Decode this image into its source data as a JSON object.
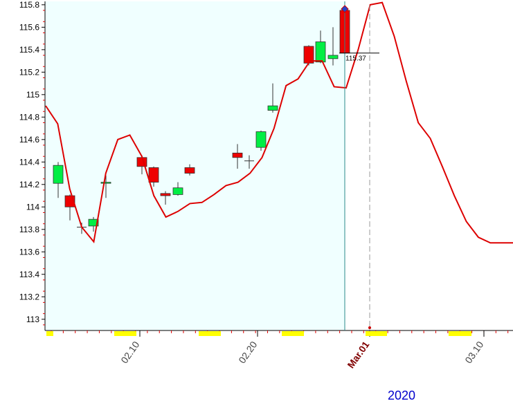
{
  "chart_data": {
    "type": "candlestick",
    "ylim": [
      112.9,
      115.83
    ],
    "y_ticks": [
      "113",
      "113.2",
      "113.4",
      "113.6",
      "113.8",
      "114",
      "114.2",
      "114.4",
      "114.6",
      "114.8",
      "115",
      "115.2",
      "115.4",
      "115.6",
      "115.8"
    ],
    "x_ticks": [
      {
        "label": "02.10",
        "major": false
      },
      {
        "label": "02.20",
        "major": false
      },
      {
        "label": "Mar.01",
        "major": true
      },
      {
        "label": "03.10",
        "major": false
      }
    ],
    "year_label": "2020",
    "last_price_label": "115.37",
    "candles": [
      {
        "open": 114.21,
        "high": 114.4,
        "low": 114.08,
        "close": 114.37
      },
      {
        "open": 114.1,
        "high": 114.11,
        "low": 113.88,
        "close": 114.0
      },
      {
        "open": 113.82,
        "high": 113.86,
        "low": 113.76,
        "close": 113.82
      },
      {
        "open": 113.83,
        "high": 113.91,
        "low": 113.78,
        "close": 113.89
      },
      {
        "open": 114.21,
        "high": 114.28,
        "low": 114.08,
        "close": 114.22
      },
      {
        "open": 114.44,
        "high": 114.46,
        "low": 114.29,
        "close": 114.36
      },
      {
        "open": 114.35,
        "high": 114.36,
        "low": 114.18,
        "close": 114.22
      },
      {
        "open": 114.12,
        "high": 114.14,
        "low": 114.02,
        "close": 114.1
      },
      {
        "open": 114.11,
        "high": 114.22,
        "low": 114.1,
        "close": 114.17
      },
      {
        "open": 114.35,
        "high": 114.38,
        "low": 114.28,
        "close": 114.3
      },
      {
        "open": 114.48,
        "high": 114.56,
        "low": 114.34,
        "close": 114.44
      },
      {
        "open": 114.41,
        "high": 114.46,
        "low": 114.34,
        "close": 114.41
      },
      {
        "open": 114.53,
        "high": 114.68,
        "low": 114.5,
        "close": 114.67
      },
      {
        "open": 114.86,
        "high": 115.1,
        "low": 114.84,
        "close": 114.9
      },
      {
        "open": 115.43,
        "high": 115.44,
        "low": 115.26,
        "close": 115.28
      },
      {
        "open": 115.29,
        "high": 115.57,
        "low": 115.28,
        "close": 115.47
      },
      {
        "open": 115.32,
        "high": 115.6,
        "low": 115.26,
        "close": 115.35
      },
      {
        "open": 115.75,
        "high": 115.82,
        "low": 115.37,
        "close": 115.37
      }
    ],
    "trend_line": [
      114.9,
      114.74,
      114.16,
      113.82,
      113.69,
      114.3,
      114.6,
      114.64,
      114.45,
      114.1,
      113.91,
      113.96,
      114.03,
      114.04,
      114.11,
      114.19,
      114.22,
      114.3,
      114.44,
      114.7,
      115.08,
      115.14,
      115.3,
      115.3,
      115.07,
      115.06,
      115.4,
      115.8,
      115.82,
      115.52,
      115.12,
      114.75,
      114.61,
      114.36,
      114.1,
      113.87,
      113.73,
      113.68,
      113.68,
      113.68
    ],
    "colors": {
      "bull": "#00ee44",
      "bear": "#ee0000",
      "trend": "#dd0000",
      "background": "#f0ffff",
      "markers": "#ffff00",
      "year": "#0000cc",
      "major_tick": "#800000"
    }
  }
}
